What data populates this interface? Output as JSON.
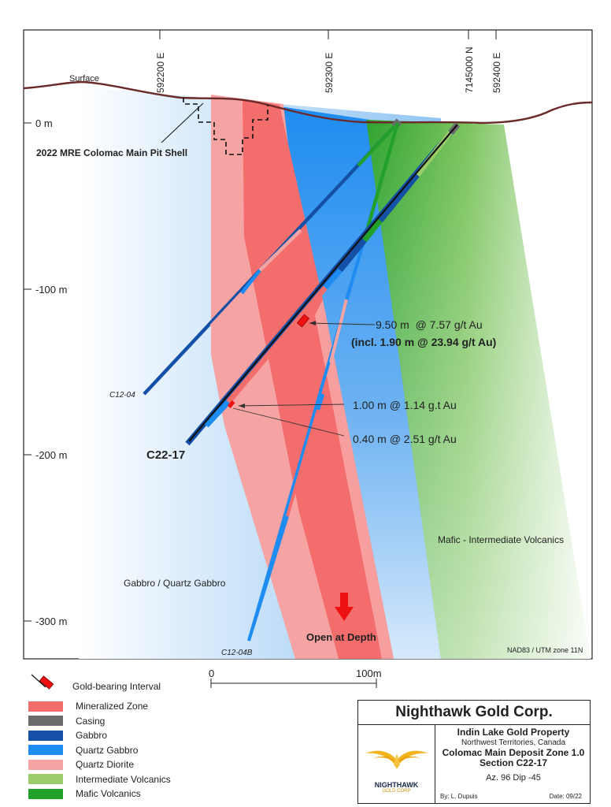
{
  "map": {
    "surface_label": "Surface",
    "pit_shell_label": "2022 MRE Colomac Main Pit Shell",
    "datum_label": "NAD83 / UTM zone 11N",
    "eastings": [
      "592200 E",
      "592300 E",
      "592400 E"
    ],
    "northing": "7145000 N",
    "depths": [
      "0 m",
      "-100 m",
      "-200 m",
      "-300 m"
    ],
    "open_at_depth": "Open at Depth",
    "unit_labels": {
      "mafic_intermediate": "Mafic - Intermediate Volcanics",
      "gabbro_quartz_gabbro": "Gabbro / Quartz Gabbro"
    },
    "holes": {
      "c12_04": "C12-04",
      "c22_17": "C22-17",
      "c12_04b": "C12-04B"
    },
    "intercepts": [
      "9.50 m  @ 7.57 g/t Au",
      "(incl. 1.90 m @ 23.94 g/t Au)",
      "1.00 m @ 1.14 g.t Au",
      "0.40 m @ 2.51 g/t Au"
    ],
    "scale_bar": {
      "start": "0",
      "end": "100m"
    }
  },
  "legend": {
    "gold_interval": "Gold-bearing Interval",
    "items": [
      {
        "label": "Mineralized Zone",
        "color": "#f36d6d"
      },
      {
        "label": "Casing",
        "color": "#6b6b6b"
      },
      {
        "label": "Gabbro",
        "color": "#1350a6"
      },
      {
        "label": "Quartz Gabbro",
        "color": "#1e8cf0"
      },
      {
        "label": "Quartz Diorite",
        "color": "#f5a3a3"
      },
      {
        "label": "Intermediate Volcanics",
        "color": "#9ccb6a"
      },
      {
        "label": "Mafic Volcanics",
        "color": "#22a02a"
      }
    ]
  },
  "title_block": {
    "company": "Nighthawk Gold Corp.",
    "logo_name": "NIGHTHAWK",
    "logo_sub": "GOLD CORP",
    "property": "Indin Lake Gold Property",
    "region": "Northwest Territories, Canada",
    "deposit": "Colomac Main Deposit Zone 1.0",
    "section": "Section C22-17",
    "azimuth_dip": "Az. 96  Dip -45",
    "author": "By: L. Dupuis",
    "date": "Date: 09/22"
  }
}
